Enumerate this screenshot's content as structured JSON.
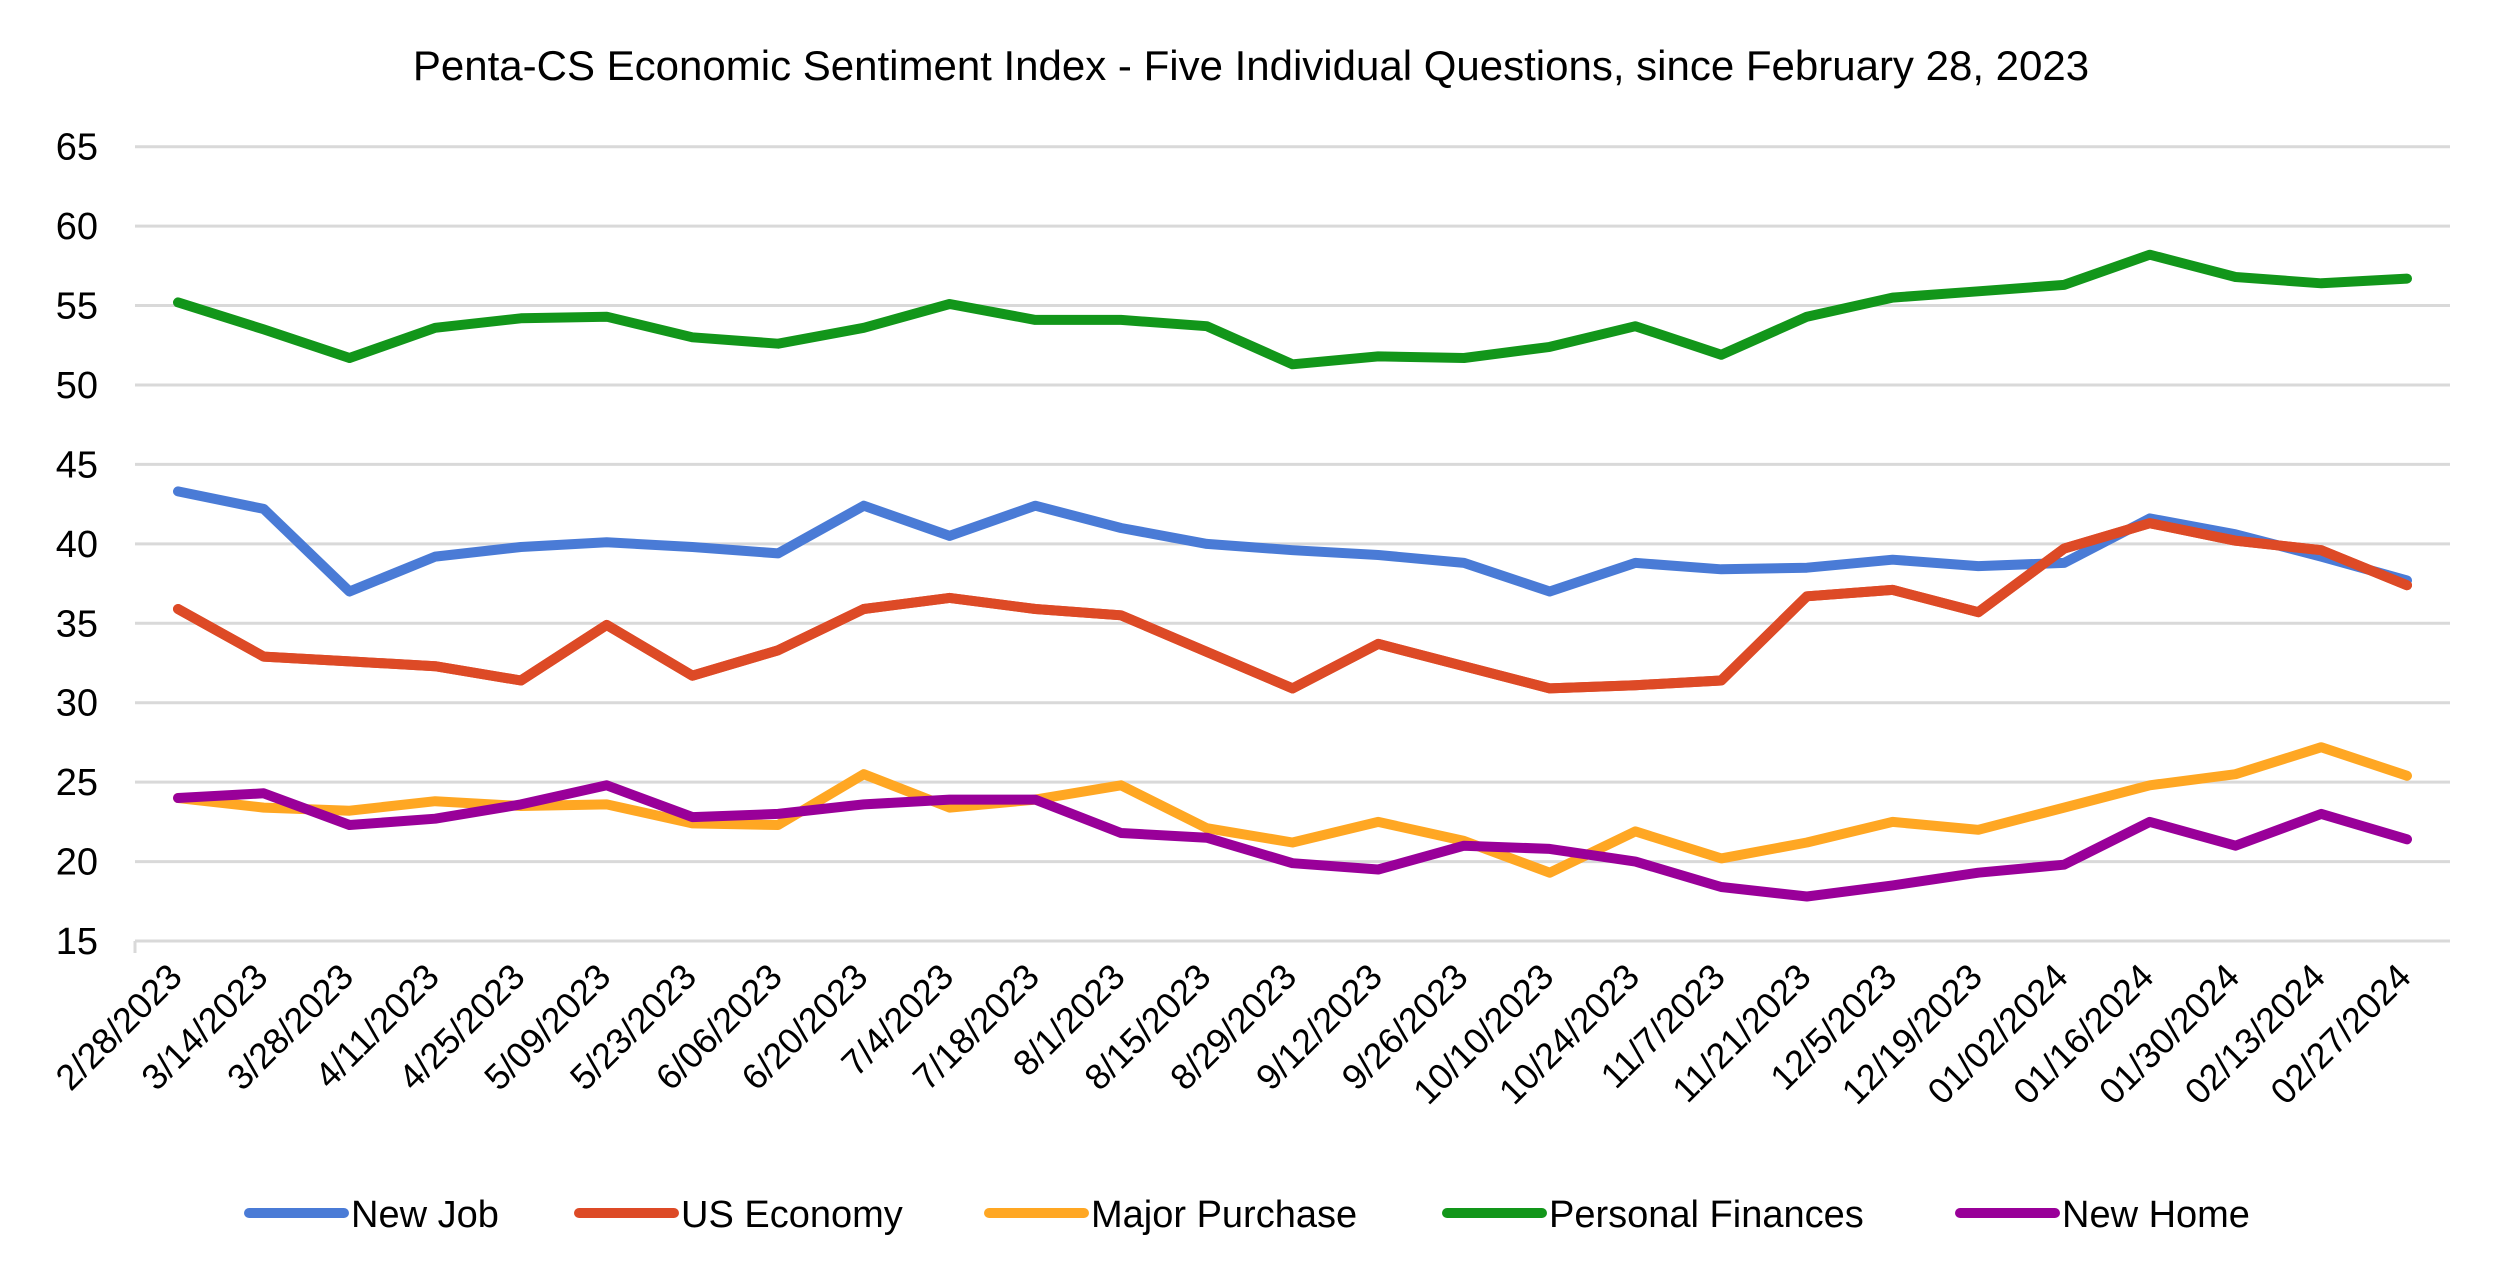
{
  "chart_data": {
    "type": "line",
    "title": "Penta-CS Economic Sentiment Index - Five Individual Questions, since February 28, 2023",
    "xlabel": "",
    "ylabel": "",
    "ylim": [
      15,
      65
    ],
    "yticks": [
      15,
      20,
      25,
      30,
      35,
      40,
      45,
      50,
      55,
      60,
      65
    ],
    "grid": true,
    "legend_position": "bottom",
    "categories": [
      "2/28/2023",
      "3/14/2023",
      "3/28/2023",
      "4/11/2023",
      "4/25/2023",
      "5/09/2023",
      "5/23/2023",
      "6/06/2023",
      "6/20/2023",
      "7/4/2023",
      "7/18/2023",
      "8/1/2023",
      "8/15/2023",
      "8/29/2023",
      "9/12/2023",
      "9/26/2023",
      "10/10/2023",
      "10/24/2023",
      "11/7/2023",
      "11/21/2023",
      "12/5/2023",
      "12/19/2023",
      "01/02/2024",
      "01/16/2024",
      "01/30/2024",
      "02/13/2024",
      "02/27/2024"
    ],
    "series": [
      {
        "name": "New Job",
        "color": "#4a7bd6",
        "values": [
          43.3,
          42.2,
          37.0,
          39.2,
          39.8,
          40.1,
          39.8,
          39.4,
          42.4,
          40.5,
          42.4,
          41.0,
          40.0,
          39.6,
          39.3,
          38.8,
          37.0,
          38.8,
          38.4,
          38.5,
          39.0,
          38.6,
          38.8,
          41.6,
          40.6,
          39.2,
          37.7
        ]
      },
      {
        "name": "US Economy",
        "color": "#dd4a26",
        "values": [
          35.9,
          32.9,
          32.6,
          32.3,
          31.4,
          34.9,
          31.7,
          33.3,
          35.9,
          36.6,
          35.9,
          35.5,
          33.2,
          30.9,
          33.7,
          32.3,
          30.9,
          31.1,
          31.4,
          36.7,
          37.1,
          35.7,
          39.7,
          41.3,
          40.2,
          39.6,
          37.4
        ]
      },
      {
        "name": "Major Purchase",
        "color": "#ffa723",
        "values": [
          24.0,
          23.4,
          23.2,
          23.8,
          23.5,
          23.6,
          22.4,
          22.3,
          25.5,
          23.4,
          23.9,
          24.8,
          22.1,
          21.2,
          22.5,
          21.3,
          19.3,
          21.9,
          20.2,
          21.2,
          22.5,
          22.0,
          23.4,
          24.8,
          25.5,
          27.2,
          25.4
        ]
      },
      {
        "name": "Personal Finances",
        "color": "#12961a",
        "values": [
          55.2,
          53.5,
          51.7,
          53.6,
          54.2,
          54.3,
          53.0,
          52.6,
          53.6,
          55.1,
          54.1,
          54.1,
          53.7,
          51.3,
          51.8,
          51.7,
          52.4,
          53.7,
          51.9,
          54.3,
          55.5,
          55.9,
          56.3,
          58.2,
          56.8,
          56.4,
          56.7
        ]
      },
      {
        "name": "New Home",
        "color": "#990099",
        "values": [
          24.0,
          24.3,
          22.3,
          22.7,
          23.6,
          24.8,
          22.8,
          23.0,
          23.6,
          23.9,
          23.9,
          21.8,
          21.5,
          19.9,
          19.5,
          21.0,
          20.8,
          20.0,
          18.4,
          17.8,
          18.5,
          19.3,
          19.8,
          22.5,
          21.0,
          23.0,
          21.4
        ]
      }
    ]
  }
}
